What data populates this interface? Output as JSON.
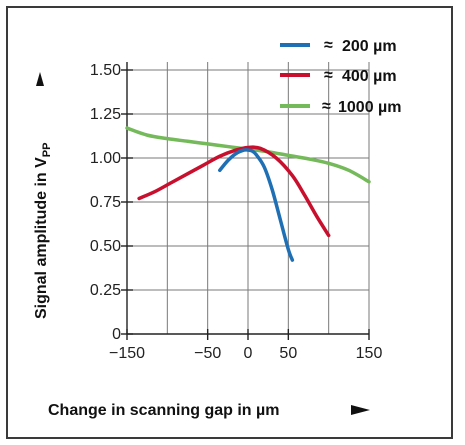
{
  "chart_data": {
    "type": "line",
    "xlabel": "Change in scanning gap in µm",
    "ylabel": "Signal amplitude in V",
    "ylabel_sub": "PP",
    "xlim": [
      -150,
      150
    ],
    "ylim": [
      0,
      1.5
    ],
    "x_ticks": [
      -150,
      -50,
      0,
      50,
      150
    ],
    "x_tick_labels": [
      "−150",
      "−50",
      "0",
      "50",
      "150"
    ],
    "y_ticks": [
      0,
      0.25,
      0.5,
      0.75,
      1.0,
      1.25,
      1.5
    ],
    "y_tick_labels": [
      "0",
      "0.25",
      "0.50",
      "0.75",
      "1.00",
      "1.25",
      "1.50"
    ],
    "x_grid": [
      -100,
      -50,
      0,
      50,
      100,
      150
    ],
    "grid": true,
    "legend_position": "top-right",
    "legend_symbol": "≈",
    "series": [
      {
        "name": "200 µm",
        "color": "#1f6fb5",
        "x": [
          -35,
          -25,
          -15,
          -5,
          0,
          5,
          10,
          20,
          30,
          40,
          50,
          55
        ],
        "y": [
          0.93,
          0.985,
          1.025,
          1.045,
          1.045,
          1.04,
          1.02,
          0.95,
          0.82,
          0.65,
          0.48,
          0.42
        ]
      },
      {
        "name": "400 µm",
        "color": "#c8102e",
        "x": [
          -135,
          -115,
          -95,
          -75,
          -55,
          -35,
          -15,
          0,
          15,
          35,
          55,
          70,
          85,
          100
        ],
        "y": [
          0.77,
          0.81,
          0.86,
          0.91,
          0.96,
          1.01,
          1.045,
          1.06,
          1.055,
          1.0,
          0.9,
          0.79,
          0.67,
          0.56
        ]
      },
      {
        "name": "1000 µm",
        "color": "#74b95a",
        "x": [
          -150,
          -125,
          -100,
          -75,
          -50,
          -25,
          0,
          25,
          50,
          75,
          100,
          125,
          150
        ],
        "y": [
          1.17,
          1.13,
          1.11,
          1.095,
          1.08,
          1.065,
          1.05,
          1.035,
          1.015,
          0.995,
          0.97,
          0.93,
          0.865
        ]
      }
    ]
  }
}
